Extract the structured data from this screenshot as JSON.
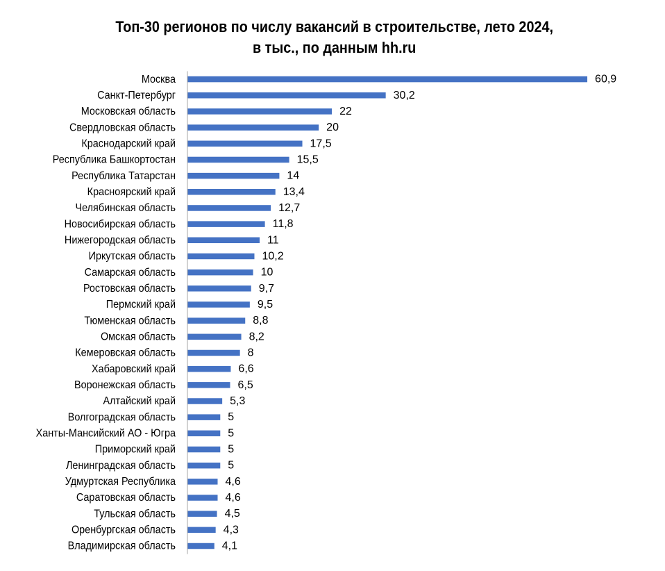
{
  "title_line1": "Топ-30 регионов по числу вакансий в строительстве, лето 2024,",
  "title_line2": "в тыс., по данным hh.ru",
  "colors": {
    "bar": "#4472C4",
    "axis": "#A6A6A6",
    "text": "#000000"
  },
  "chart_data": {
    "type": "bar",
    "orientation": "horizontal",
    "title": "Топ-30 регионов по числу вакансий в строительстве, лето 2024, в тыс., по данным hh.ru",
    "categories": [
      "Москва",
      "Санкт-Петербург",
      "Московская область",
      "Свердловская область",
      "Краснодарский край",
      "Республика Башкортостан",
      "Республика Татарстан",
      "Красноярский край",
      "Челябинская область",
      "Новосибирская область",
      "Нижегородская область",
      "Иркутская область",
      "Самарская область",
      "Ростовская область",
      "Пермский край",
      "Тюменская область",
      "Омская область",
      "Кемеровская область",
      "Хабаровский край",
      "Воронежская область",
      "Алтайский край",
      "Волгоградская область",
      "Ханты-Мансийский АО - Югра",
      "Приморский край",
      "Ленинградская область",
      "Удмуртская Республика",
      "Саратовская область",
      "Тульская область",
      "Оренбургская область",
      "Владимирская область"
    ],
    "values": [
      60.9,
      30.2,
      22,
      20,
      17.5,
      15.5,
      14,
      13.4,
      12.7,
      11.8,
      11,
      10.2,
      10,
      9.7,
      9.5,
      8.8,
      8.2,
      8,
      6.6,
      6.5,
      5.3,
      5,
      5,
      5,
      5,
      4.6,
      4.6,
      4.5,
      4.3,
      4.1
    ],
    "data_labels": [
      "60,9",
      "30,2",
      "22",
      "20",
      "17,5",
      "15,5",
      "14",
      "13,4",
      "12,7",
      "11,8",
      "11",
      "10,2",
      "10",
      "9,7",
      "9,5",
      "8,8",
      "8,2",
      "8",
      "6,6",
      "6,5",
      "5,3",
      "5",
      "5",
      "5",
      "5",
      "4,6",
      "4,6",
      "4,5",
      "4,3",
      "4,1"
    ],
    "xlim": [
      0,
      61
    ],
    "grid": false,
    "legend": "none"
  }
}
